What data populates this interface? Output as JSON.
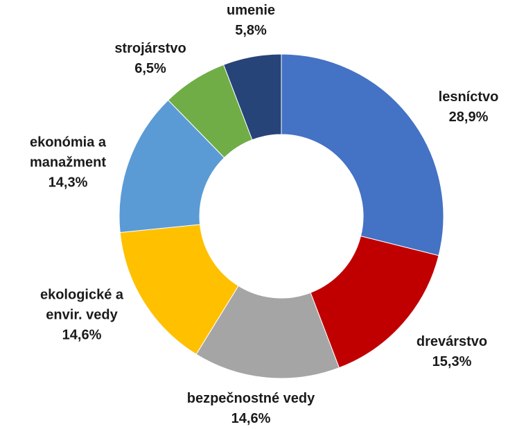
{
  "chart_data": {
    "type": "donut",
    "categories": [
      "lesníctvo",
      "drevárstvo",
      "bezpečnostné vedy",
      "ekologické a envir. vedy",
      "ekonómia a manažment",
      "strojárstvo",
      "umenie"
    ],
    "values": [
      28.9,
      15.3,
      14.6,
      14.6,
      14.3,
      6.5,
      5.8
    ],
    "value_labels": [
      "28,9%",
      "15,3%",
      "14,6%",
      "14,6%",
      "14,3%",
      "6,5%",
      "5,8%"
    ],
    "colors": [
      "#4472c4",
      "#c00000",
      "#a5a5a5",
      "#ffc000",
      "#5b9bd5",
      "#70ad47",
      "#264478"
    ]
  }
}
